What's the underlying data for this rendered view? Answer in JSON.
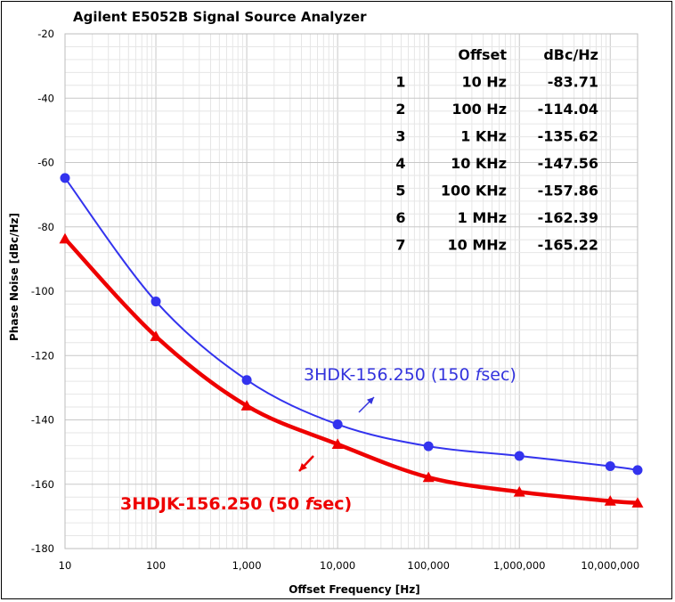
{
  "chart_data": {
    "type": "line",
    "title": "Agilent E5052B Signal Source Analyzer",
    "xlabel": "Offset Frequency [Hz]",
    "ylabel": "Phase Noise [dBc/Hz]",
    "xscale": "log",
    "xlim": [
      10,
      20000000
    ],
    "ylim": [
      -180,
      -20
    ],
    "grid": true,
    "x_tick_labels": [
      "10",
      "100",
      "1,000",
      "10,000",
      "100,000",
      "1,000,000",
      "10,000,000"
    ],
    "y_tick_labels": [
      "-20",
      "-40",
      "-60",
      "-80",
      "-100",
      "-120",
      "-140",
      "-160",
      "-180"
    ],
    "series": [
      {
        "name": "3HDK-156.250 (150 fsec)",
        "color": "#3333ee",
        "marker": "circle",
        "x": [
          10,
          100,
          1000,
          10000,
          100000,
          1000000,
          10000000,
          20000000
        ],
        "y": [
          -64.8,
          -103.2,
          -127.6,
          -141.4,
          -148.2,
          -151.2,
          -154.4,
          -155.6
        ]
      },
      {
        "name": "3HDJK-156.250 (50 fsec)",
        "color": "#ee0000",
        "marker": "triangle",
        "x": [
          10,
          100,
          1000,
          10000,
          100000,
          1000000,
          10000000,
          20000000
        ],
        "y": [
          -83.71,
          -114.04,
          -135.62,
          -147.56,
          -157.86,
          -162.39,
          -165.22,
          -165.8
        ]
      }
    ],
    "table": {
      "headers": [
        "",
        "Offset",
        "dBc/Hz"
      ],
      "rows": [
        [
          "1",
          "10 Hz",
          "-83.71"
        ],
        [
          "2",
          "100 Hz",
          "-114.04"
        ],
        [
          "3",
          "1 KHz",
          "-135.62"
        ],
        [
          "4",
          "10 KHz",
          "-147.56"
        ],
        [
          "5",
          "100 KHz",
          "-157.86"
        ],
        [
          "6",
          "1 MHz",
          "-162.39"
        ],
        [
          "7",
          "10 MHz",
          "-165.22"
        ]
      ]
    },
    "annotations": {
      "blue_prefix": "3HDK-156.250 (150 ",
      "blue_italic": "f",
      "blue_suffix": "sec)",
      "red_prefix": "3HDJK-156.250 (50 ",
      "red_italic": "f",
      "red_suffix": "sec)"
    }
  }
}
